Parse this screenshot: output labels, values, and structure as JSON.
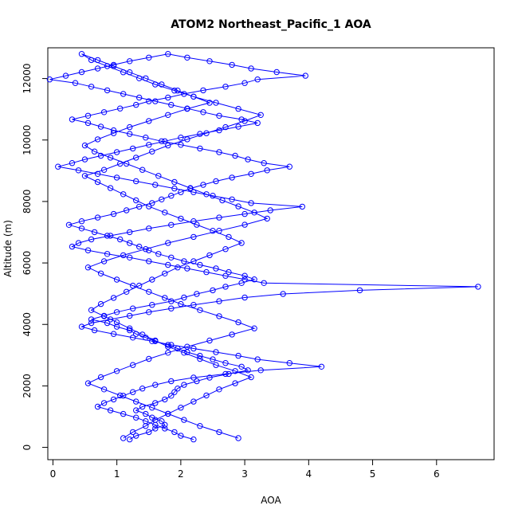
{
  "chart_data": {
    "type": "line",
    "title": "ATOM2 Northeast_Pacific_1 AOA",
    "xlabel": "AOA",
    "ylabel": "Altitude (m)",
    "xlim": [
      -0.08,
      6.9
    ],
    "ylim": [
      -400,
      13000
    ],
    "xticks": [
      0,
      1,
      2,
      3,
      4,
      5,
      6
    ],
    "yticks": [
      0,
      2000,
      4000,
      6000,
      8000,
      10000,
      12000
    ],
    "line_color": "#0000ff",
    "marker": "open-circle",
    "grid": false,
    "legend": "none",
    "series": [
      {
        "x": [
          1.2,
          1.3,
          1.5,
          1.6,
          1.75,
          1.7,
          1.55,
          1.45,
          1.3,
          1.4,
          1.6,
          1.75,
          1.85,
          1.9,
          1.95,
          2.05,
          2.25,
          2.45,
          2.75,
          3.05,
          2.95,
          2.7,
          2.5,
          2.3,
          2.1,
          1.95,
          1.8,
          1.6,
          1.45,
          1.3,
          1.2,
          1.0,
          0.85,
          0.6,
          0.8,
          1.0,
          1.25,
          1.55,
          1.85,
          2.05,
          2.25,
          2.5,
          2.7,
          2.95,
          3.15,
          3.0,
          2.75,
          2.55,
          2.3,
          2.05,
          1.85,
          1.65,
          1.5,
          1.35,
          1.2,
          1.05,
          0.85,
          0.65,
          0.45,
          0.25,
          0.45,
          0.7,
          0.95,
          1.15,
          1.35,
          1.55,
          1.7,
          1.85,
          2.0,
          2.15,
          2.35,
          2.55,
          2.8,
          3.1,
          3.35,
          3.7,
          3.3,
          3.05,
          2.85,
          2.6,
          2.3,
          2.0,
          1.7,
          1.45,
          1.2,
          0.95,
          0.75,
          0.55,
          0.3,
          0.55,
          0.8,
          1.05,
          1.3,
          1.5,
          1.8,
          2.05,
          2.35,
          2.7,
          3.0,
          3.2,
          3.95,
          3.5,
          3.1,
          2.8,
          2.45,
          2.1,
          1.8,
          1.5,
          1.2,
          0.95,
          0.7,
          0.45,
          0.2,
          -0.05,
          0.35,
          0.6,
          0.85,
          1.1,
          1.35,
          1.6,
          1.85,
          2.1,
          2.35,
          2.6,
          2.95,
          3.2,
          2.9,
          2.6,
          2.3,
          2.0,
          1.75,
          1.5,
          1.25,
          1.0,
          0.75,
          0.5,
          0.3,
          0.08,
          0.4,
          0.7,
          1.0,
          1.3,
          1.6,
          1.9,
          2.2,
          2.5,
          2.8,
          3.1,
          3.9,
          3.4,
          3.0,
          2.6,
          2.2,
          1.85,
          1.5,
          1.2,
          0.9,
          0.6,
          0.4,
          0.3,
          0.55,
          0.85,
          1.2,
          1.5,
          1.8,
          2.1,
          2.4,
          2.7,
          3.0,
          3.3,
          6.65,
          4.8,
          3.6,
          3.0,
          2.6,
          2.2,
          1.85,
          1.5,
          1.2,
          0.9,
          0.6,
          0.45,
          0.65,
          0.95,
          1.25,
          1.55,
          1.85,
          2.2,
          2.55,
          2.9,
          3.2,
          3.7,
          4.2,
          3.25,
          2.7,
          2.2,
          1.85,
          1.6,
          1.4,
          1.25,
          1.1,
          0.95,
          0.8,
          0.7,
          0.9,
          1.1,
          1.3,
          1.45,
          1.6,
          1.75,
          1.9,
          2.0,
          2.2
        ]
      },
      {
        "x": [
          1.1,
          1.25,
          1.45,
          1.6,
          1.8,
          2.0,
          2.2,
          2.4,
          2.6,
          2.85,
          3.1,
          2.85,
          2.55,
          2.3,
          2.05,
          1.8,
          1.6,
          1.4,
          1.2,
          1.0,
          0.8,
          0.6,
          0.75,
          0.95,
          1.15,
          1.35,
          1.55,
          1.75,
          1.95,
          2.2,
          2.45,
          2.7,
          2.95,
          2.75,
          2.5,
          2.25,
          2.0,
          1.75,
          1.5,
          1.3,
          1.1,
          0.9,
          0.7,
          0.5,
          0.8,
          1.05,
          1.3,
          1.55,
          1.8,
          2.1,
          2.4,
          2.7,
          3.0,
          3.25,
          2.9,
          2.55,
          2.2,
          1.9,
          1.6,
          1.35,
          1.1,
          0.85,
          0.6,
          0.45,
          0.7,
          0.95,
          1.2,
          1.45,
          1.7,
          1.95,
          2.2,
          2.45,
          2.1,
          1.8,
          1.5,
          1.2,
          0.95,
          0.7,
          0.5,
          0.65,
          0.9,
          1.15,
          1.4,
          1.65,
          1.9,
          2.15,
          2.4,
          2.65,
          2.9,
          3.15,
          3.35,
          3.0,
          2.6,
          2.2,
          1.8,
          1.45,
          1.1,
          0.8,
          0.55,
          0.75,
          1.0,
          1.25,
          1.5,
          1.75,
          2.0,
          2.3,
          2.6,
          2.9,
          3.15,
          2.8,
          2.45,
          2.1,
          1.8,
          1.5,
          1.25,
          1.0,
          0.75,
          0.55,
          0.8,
          1.05,
          1.3,
          1.55,
          1.8,
          2.05,
          2.3,
          2.6,
          2.9
        ]
      }
    ]
  }
}
